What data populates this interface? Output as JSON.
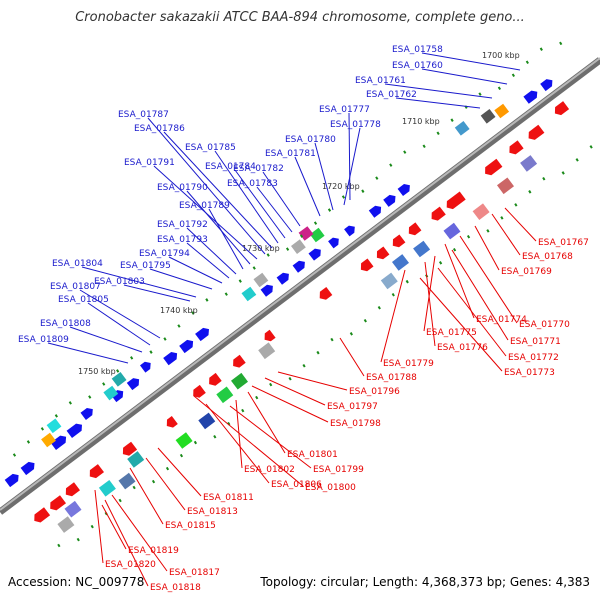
{
  "title": "Cronobacter sakazakii ATCC BAA-894 chromosome, complete geno...",
  "footer": {
    "accession": "Accession: NC_009778",
    "summary": "Topology: circular; Length: 4,368,373 bp; Genes: 4,383"
  },
  "colors": {
    "forward_label": "#1a1acc",
    "reverse_label": "#e60000",
    "forward_gene": "#1010ee",
    "reverse_gene": "#ee1111",
    "backbone": "#8a8a8a",
    "tick": "#1a8a1a"
  },
  "scale": {
    "start_kbp": 1700,
    "end_kbp": 1750,
    "ticks": [
      {
        "kbp": 1700,
        "label": "1700 kbp"
      },
      {
        "kbp": 1710,
        "label": "1710 kbp"
      },
      {
        "kbp": 1720,
        "label": "1720 kbp"
      },
      {
        "kbp": 1730,
        "label": "1730 kbp"
      },
      {
        "kbp": 1740,
        "label": "1740 kbp"
      },
      {
        "kbp": 1750,
        "label": "1750 kbp"
      }
    ]
  },
  "forward_labels": [
    "ESA_01758",
    "ESA_01760",
    "ESA_01761",
    "ESA_01762",
    "ESA_01777",
    "ESA_01778",
    "ESA_01780",
    "ESA_01781",
    "ESA_01782",
    "ESA_01783",
    "ESA_01784",
    "ESA_01785",
    "ESA_01786",
    "ESA_01787",
    "ESA_01791",
    "ESA_01790",
    "ESA_01789",
    "ESA_01792",
    "ESA_01793",
    "ESA_01794",
    "ESA_01795",
    "ESA_01804",
    "ESA_01803",
    "ESA_01807",
    "ESA_01805",
    "ESA_01808",
    "ESA_01809"
  ],
  "reverse_labels": [
    "ESA_01767",
    "ESA_01768",
    "ESA_01769",
    "ESA_01770",
    "ESA_01774",
    "ESA_01771",
    "ESA_01775",
    "ESA_01776",
    "ESA_01772",
    "ESA_01773",
    "ESA_01779",
    "ESA_01788",
    "ESA_01796",
    "ESA_01797",
    "ESA_01798",
    "ESA_01801",
    "ESA_01802",
    "ESA_01799",
    "ESA_01806",
    "ESA_01800",
    "ESA_01811",
    "ESA_01813",
    "ESA_01815",
    "ESA_01819",
    "ESA_01820",
    "ESA_01817",
    "ESA_01818"
  ]
}
